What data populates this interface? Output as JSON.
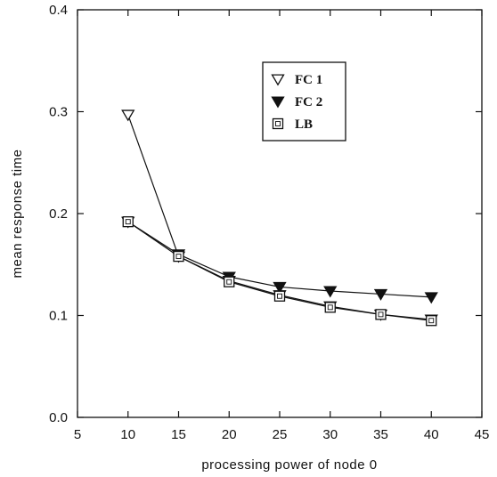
{
  "chart_data": {
    "type": "line",
    "title": "",
    "xlabel": "processing power of node 0",
    "ylabel": "mean response time",
    "xlim": [
      5,
      45
    ],
    "ylim": [
      0.0,
      0.4
    ],
    "xticks": [
      5,
      10,
      15,
      20,
      25,
      30,
      35,
      40,
      45
    ],
    "yticks": [
      0.0,
      0.1,
      0.2,
      0.3,
      0.4
    ],
    "x_tick_labels": [
      "5",
      "10",
      "15",
      "20",
      "25",
      "30",
      "35",
      "40",
      "45"
    ],
    "y_tick_labels": [
      "0.0",
      "0.1",
      "0.2",
      "0.3",
      "0.4"
    ],
    "grid": false,
    "legend_position": "upper-right",
    "x": [
      10,
      15,
      20,
      25,
      30,
      35,
      40
    ],
    "series": [
      {
        "name": "FC 1",
        "marker": "triangle-down-open",
        "values": [
          0.297,
          0.158,
          0.134,
          0.12,
          0.109,
          0.101,
          0.096
        ]
      },
      {
        "name": "FC 2",
        "marker": "triangle-down-filled",
        "values": [
          0.192,
          0.16,
          0.138,
          0.128,
          0.124,
          0.121,
          0.118
        ]
      },
      {
        "name": "LB",
        "marker": "square-open",
        "values": [
          0.192,
          0.158,
          0.133,
          0.119,
          0.108,
          0.101,
          0.095
        ]
      }
    ],
    "colors": {
      "line": "#111111",
      "marker_fill": "#ffffff"
    }
  }
}
